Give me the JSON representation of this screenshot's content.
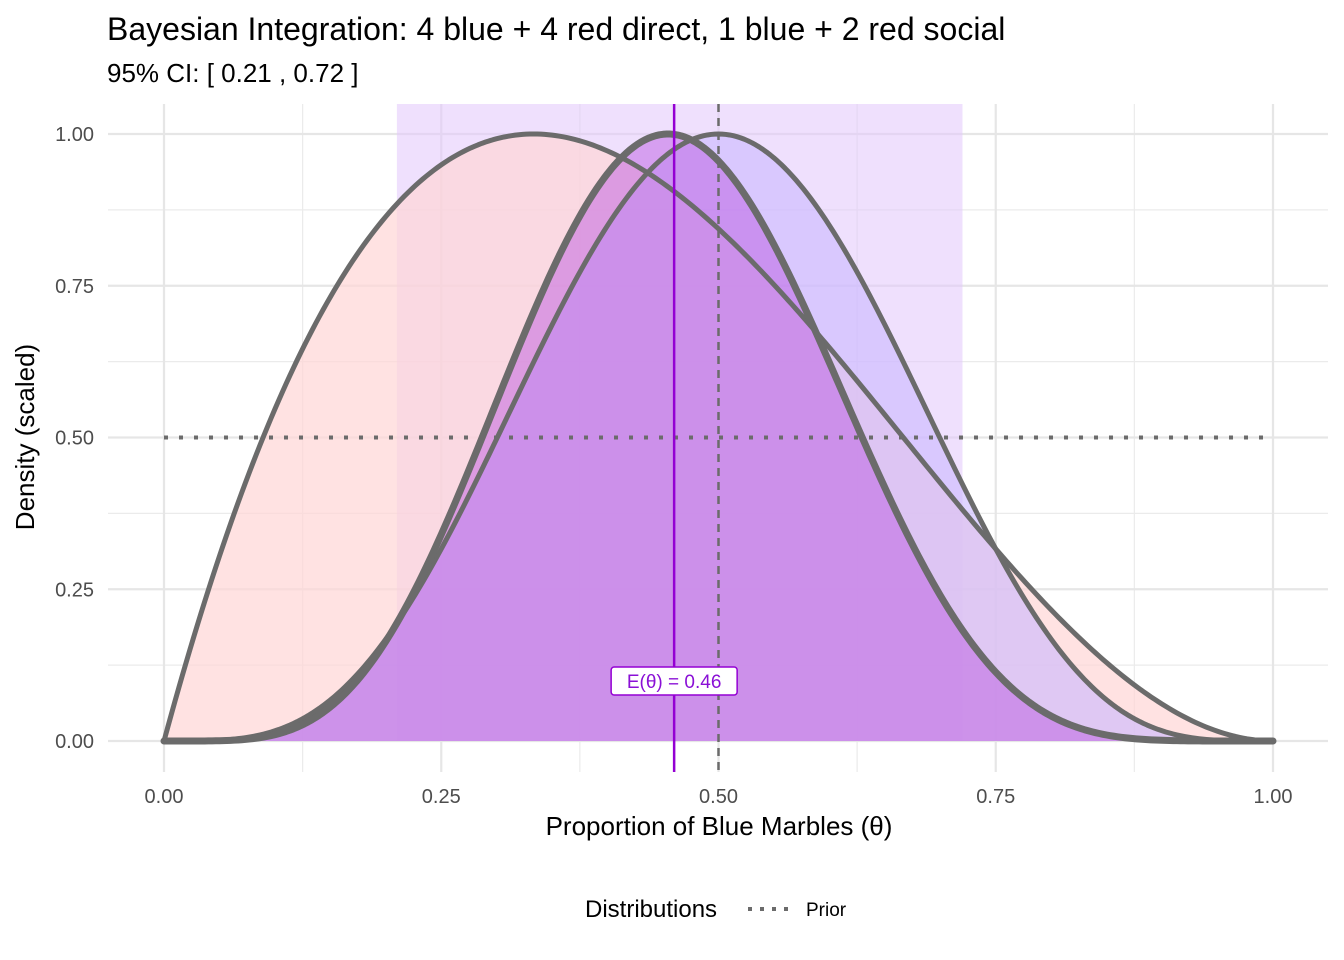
{
  "chart_data": {
    "type": "area",
    "title": "Bayesian Integration: 4 blue + 4 red direct, 1 blue + 2 red social",
    "subtitle": "95% CI: [ 0.21 ,  0.72 ]",
    "xlabel": "Proportion of Blue Marbles (θ)",
    "ylabel": "Density (scaled)",
    "xlim": [
      0,
      1
    ],
    "ylim": [
      0,
      1
    ],
    "x_ticks": [
      "0.00",
      "0.25",
      "0.50",
      "0.75",
      "1.00"
    ],
    "y_ticks": [
      "0.00",
      "0.25",
      "0.50",
      "0.75",
      "1.00"
    ],
    "grid": true,
    "legend": {
      "title": "Distributions",
      "placement": "bottom",
      "entries": [
        "Prior"
      ]
    },
    "series": [
      {
        "dist": "beta",
        "alpha": 1,
        "beta": 1,
        "scaled_to": 0.5,
        "fill": null,
        "line": "dotted",
        "line_color": "#6b6b6b"
      },
      {
        "dist": "beta",
        "alpha": 2,
        "beta": 3,
        "scaled_to": 1.0,
        "fill": "#ffd6d6",
        "fill_opacity": 0.7,
        "line": "solid",
        "line_color": "#6b6b6b"
      },
      {
        "dist": "beta",
        "alpha": 5,
        "beta": 5,
        "scaled_to": 1.0,
        "fill": "#c9b8ff",
        "fill_opacity": 0.6,
        "line": "solid",
        "line_color": "#6b6b6b"
      },
      {
        "dist": "beta",
        "alpha": 6,
        "beta": 7,
        "scaled_to": 1.0,
        "fill": "#b84fe0",
        "fill_opacity": 0.45,
        "line": "solid",
        "line_color": "#6b6b6b"
      }
    ],
    "credible_interval": {
      "lower": 0.21,
      "upper": 0.72,
      "color": "#e2c6fb"
    },
    "posterior_mean": {
      "value": 0.46,
      "label": "E(θ) = 0.46",
      "color": "#9400d3"
    },
    "reference_line": {
      "x": 0.5,
      "style": "dashed",
      "color": "#6b6b6b"
    }
  }
}
